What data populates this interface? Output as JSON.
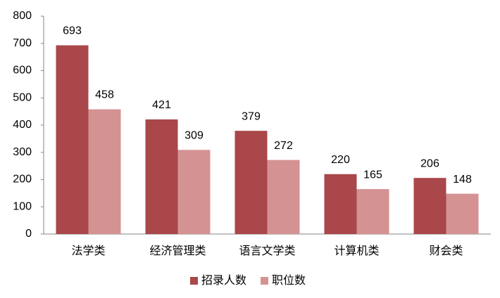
{
  "chart_data": {
    "type": "bar",
    "categories": [
      "法学类",
      "经济管理类",
      "语言文学类",
      "计算机类",
      "财会类"
    ],
    "series": [
      {
        "name": "招录人数",
        "color": "#a9474a",
        "values": [
          693,
          421,
          379,
          220,
          206
        ]
      },
      {
        "name": "职位数",
        "color": "#d49293",
        "values": [
          458,
          309,
          272,
          165,
          148
        ]
      }
    ],
    "ylim": [
      0,
      800
    ],
    "yticks": [
      0,
      100,
      200,
      300,
      400,
      500,
      600,
      700,
      800
    ],
    "grid": false,
    "legend": "bottom"
  }
}
